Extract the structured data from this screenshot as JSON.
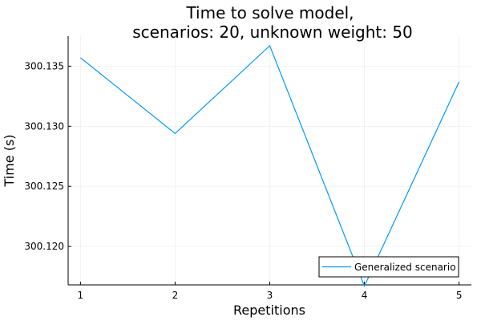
{
  "chart_data": {
    "type": "line",
    "title": [
      "Time to solve model,",
      "scenarios: 20, unknown weight: 50"
    ],
    "xlabel": "Repetitions",
    "ylabel": "Time (s)",
    "x": [
      1,
      2,
      3,
      4,
      5
    ],
    "series": [
      {
        "name": "Generalized scenario",
        "values": [
          300.1357,
          300.1294,
          300.1367,
          300.1167,
          300.1337
        ]
      }
    ],
    "xticks": [
      "1",
      "2",
      "3",
      "4",
      "5"
    ],
    "yticks": [
      "300.120",
      "300.125",
      "300.130",
      "300.135"
    ],
    "xlim": [
      0.87,
      5.13
    ],
    "ylim": [
      300.1168,
      300.1375
    ],
    "grid": true,
    "legend_position": "bottom-right",
    "colors": {
      "series": "#009AFA",
      "grid": "#EBEBEB",
      "axis": "#000000"
    }
  }
}
